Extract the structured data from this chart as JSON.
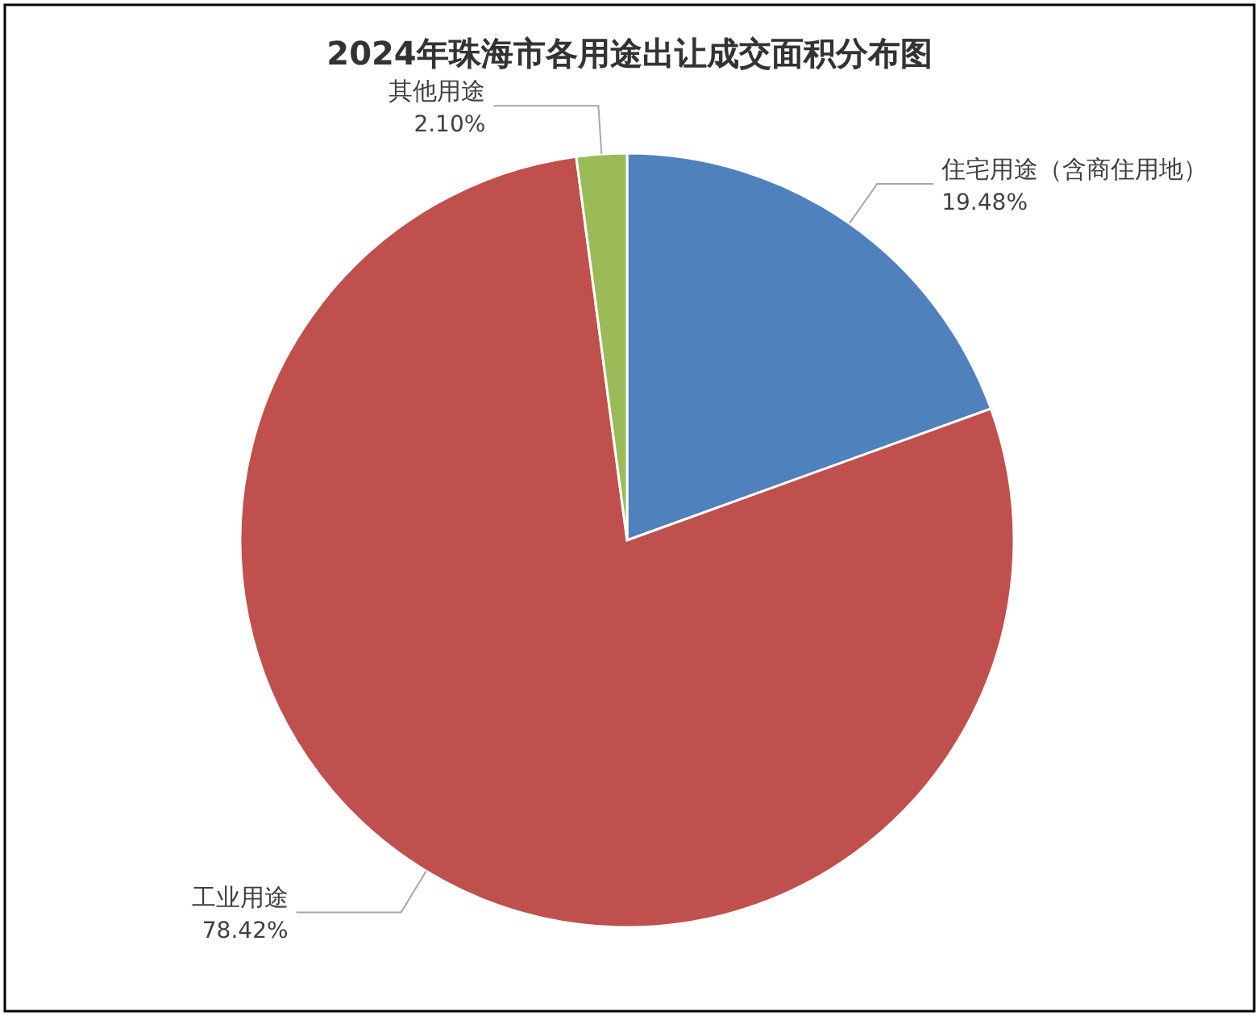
{
  "chart_data": {
    "type": "pie",
    "title": "2024年珠海市各用途出让成交面积分布图",
    "categories": [
      "住宅用途（含商住用地）",
      "工业用途",
      "其他用途"
    ],
    "values": [
      19.48,
      78.42,
      2.1
    ],
    "value_labels": [
      "19.48%",
      "78.42%",
      "2.10%"
    ],
    "colors": [
      "#4f81bd",
      "#c0504d",
      "#9bbb59"
    ]
  }
}
